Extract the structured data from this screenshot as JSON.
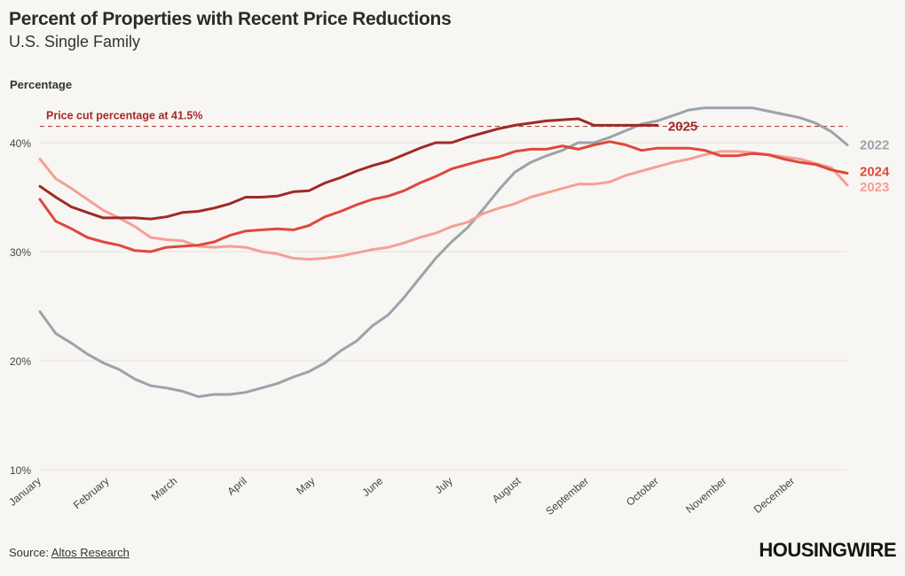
{
  "header": {
    "title": "Percent of Properties with Recent Price Reductions",
    "subtitle": "U.S. Single Family"
  },
  "footer": {
    "source_prefix": "Source: ",
    "source_link": "Altos Research",
    "logo": "HOUSINGWIRE"
  },
  "chart_data": {
    "type": "line",
    "ylabel": "Percentage",
    "xlabel": "",
    "ylim": [
      10,
      43.5
    ],
    "yticks": [
      10,
      20,
      30,
      40
    ],
    "ytick_labels": [
      "10%",
      "20%",
      "30%",
      "40%"
    ],
    "xlim": [
      1,
      52
    ],
    "x_tick_positions": [
      1,
      5.3,
      9.6,
      14,
      18.3,
      22.6,
      27,
      31.3,
      35.6,
      40,
      44.3,
      48.6
    ],
    "x_tick_labels": [
      "January",
      "February",
      "March",
      "April",
      "May",
      "June",
      "July",
      "August",
      "September",
      "October",
      "November",
      "December"
    ],
    "grid": true,
    "reference_line": {
      "value": 41.5,
      "label": "Price cut percentage at 41.5%",
      "color": "#a52a2a"
    },
    "series": [
      {
        "name": "2022",
        "color": "#9ba3ab",
        "x": [
          1,
          2,
          3,
          4,
          5,
          6,
          7,
          8,
          9,
          10,
          11,
          12,
          13,
          14,
          15,
          16,
          17,
          18,
          19,
          20,
          21,
          22,
          23,
          24,
          25,
          26,
          27,
          28,
          29,
          30,
          31,
          32,
          33,
          34,
          35,
          36,
          37,
          38,
          39,
          40,
          41,
          42,
          43,
          44,
          45,
          46,
          47,
          48,
          49,
          50,
          51,
          52
        ],
        "values": [
          24.5,
          22.5,
          21.6,
          20.6,
          19.8,
          19.2,
          18.3,
          17.7,
          17.5,
          17.2,
          16.7,
          16.9,
          16.9,
          17.1,
          17.5,
          17.9,
          18.5,
          19.0,
          19.8,
          20.9,
          21.8,
          23.2,
          24.2,
          25.8,
          27.6,
          29.4,
          30.9,
          32.2,
          33.9,
          35.7,
          37.3,
          38.2,
          38.8,
          39.3,
          40.0,
          40.0,
          40.5,
          41.1,
          41.7,
          42.0,
          42.5,
          43.0,
          43.2,
          43.2,
          43.2,
          43.2,
          42.9,
          42.6,
          42.3,
          41.8,
          41.0,
          39.8
        ]
      },
      {
        "name": "2023",
        "color": "#f4a096",
        "x": [
          1,
          2,
          3,
          4,
          5,
          6,
          7,
          8,
          9,
          10,
          11,
          12,
          13,
          14,
          15,
          16,
          17,
          18,
          19,
          20,
          21,
          22,
          23,
          24,
          25,
          26,
          27,
          28,
          29,
          30,
          31,
          32,
          33,
          34,
          35,
          36,
          37,
          38,
          39,
          40,
          41,
          42,
          43,
          44,
          45,
          46,
          47,
          48,
          49,
          50,
          51,
          52
        ],
        "values": [
          38.5,
          36.7,
          35.8,
          34.8,
          33.8,
          33.1,
          32.3,
          31.3,
          31.1,
          31.0,
          30.5,
          30.4,
          30.5,
          30.4,
          30.0,
          29.8,
          29.4,
          29.3,
          29.4,
          29.6,
          29.9,
          30.2,
          30.4,
          30.8,
          31.3,
          31.7,
          32.3,
          32.7,
          33.5,
          34.0,
          34.4,
          35.0,
          35.4,
          35.8,
          36.2,
          36.2,
          36.4,
          37.0,
          37.4,
          37.8,
          38.2,
          38.5,
          38.9,
          39.2,
          39.2,
          39.1,
          38.9,
          38.7,
          38.5,
          38.1,
          37.7,
          36.1
        ]
      },
      {
        "name": "2024",
        "color": "#e0473c",
        "x": [
          1,
          2,
          3,
          4,
          5,
          6,
          7,
          8,
          9,
          10,
          11,
          12,
          13,
          14,
          15,
          16,
          17,
          18,
          19,
          20,
          21,
          22,
          23,
          24,
          25,
          26,
          27,
          28,
          29,
          30,
          31,
          32,
          33,
          34,
          35,
          36,
          37,
          38,
          39,
          40,
          41,
          42,
          43,
          44,
          45,
          46,
          47,
          48,
          49,
          50,
          51,
          52
        ],
        "values": [
          34.8,
          32.8,
          32.1,
          31.3,
          30.9,
          30.6,
          30.1,
          30.0,
          30.4,
          30.5,
          30.6,
          30.9,
          31.5,
          31.9,
          32.0,
          32.1,
          32.0,
          32.4,
          33.2,
          33.7,
          34.3,
          34.8,
          35.1,
          35.6,
          36.3,
          36.9,
          37.6,
          38.0,
          38.4,
          38.7,
          39.2,
          39.4,
          39.4,
          39.7,
          39.4,
          39.8,
          40.1,
          39.8,
          39.3,
          39.5,
          39.5,
          39.5,
          39.3,
          38.8,
          38.8,
          39.0,
          38.9,
          38.5,
          38.2,
          38.0,
          37.5,
          37.2
        ]
      },
      {
        "name": "2025",
        "color": "#9e2a28",
        "x": [
          1,
          2,
          3,
          4,
          5,
          6,
          7,
          8,
          9,
          10,
          11,
          12,
          13,
          14,
          15,
          16,
          17,
          18,
          19,
          20,
          21,
          22,
          23,
          24,
          25,
          26,
          27,
          28,
          29,
          30,
          31,
          32,
          33,
          34,
          35,
          36,
          37,
          38,
          39,
          40
        ],
        "values": [
          36.0,
          35.0,
          34.1,
          33.6,
          33.1,
          33.1,
          33.1,
          33.0,
          33.2,
          33.6,
          33.7,
          34.0,
          34.4,
          35.0,
          35.0,
          35.1,
          35.5,
          35.6,
          36.3,
          36.8,
          37.4,
          37.9,
          38.3,
          38.9,
          39.5,
          40.0,
          40.0,
          40.5,
          40.9,
          41.3,
          41.6,
          41.8,
          42.0,
          42.1,
          42.2,
          41.6,
          41.6,
          41.6,
          41.6,
          41.6
        ]
      }
    ]
  }
}
